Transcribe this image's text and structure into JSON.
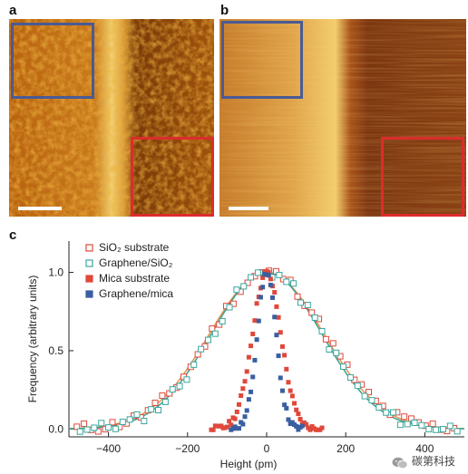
{
  "panels": {
    "a": {
      "label": "a"
    },
    "b": {
      "label": "b"
    },
    "c": {
      "label": "c"
    }
  },
  "colors": {
    "blue_box": "#4a5a95",
    "red_box": "#dc2c2c",
    "sio2_substrate": "#e0483a",
    "graphene_sio2": "#3aa79e",
    "mica_substrate": "#e0483a",
    "graphene_mica": "#3a5fa0",
    "fit_orange": "#e8944a",
    "fit_teal": "#35a090"
  },
  "watermark": {
    "text": "碳第科技",
    "icon": "wechat-icon"
  },
  "chart_data": {
    "type": "scatter",
    "xlabel": "Height (pm)",
    "ylabel": "Frequency (arbitrary units)",
    "xlim": [
      -500,
      500
    ],
    "ylim": [
      -0.05,
      1.2
    ],
    "xticks": [
      "-400",
      "-200",
      "0",
      "200",
      "400"
    ],
    "yticks": [
      "0.0",
      "0.5",
      "1.0"
    ],
    "legend_position": "top-left",
    "grid": false,
    "series": [
      {
        "name": "SiO₂ substrate",
        "marker": "open-square",
        "color": "#e0483a",
        "sigma": 145
      },
      {
        "name": "Graphene/SiO₂",
        "marker": "open-square",
        "color": "#3aa79e",
        "sigma": 140
      },
      {
        "name": "Mica substrate",
        "marker": "filled-square",
        "color": "#e0483a",
        "sigma": 36
      },
      {
        "name": "Graphene/mica",
        "marker": "filled-square",
        "color": "#3a5fa0",
        "sigma": 24
      }
    ]
  }
}
